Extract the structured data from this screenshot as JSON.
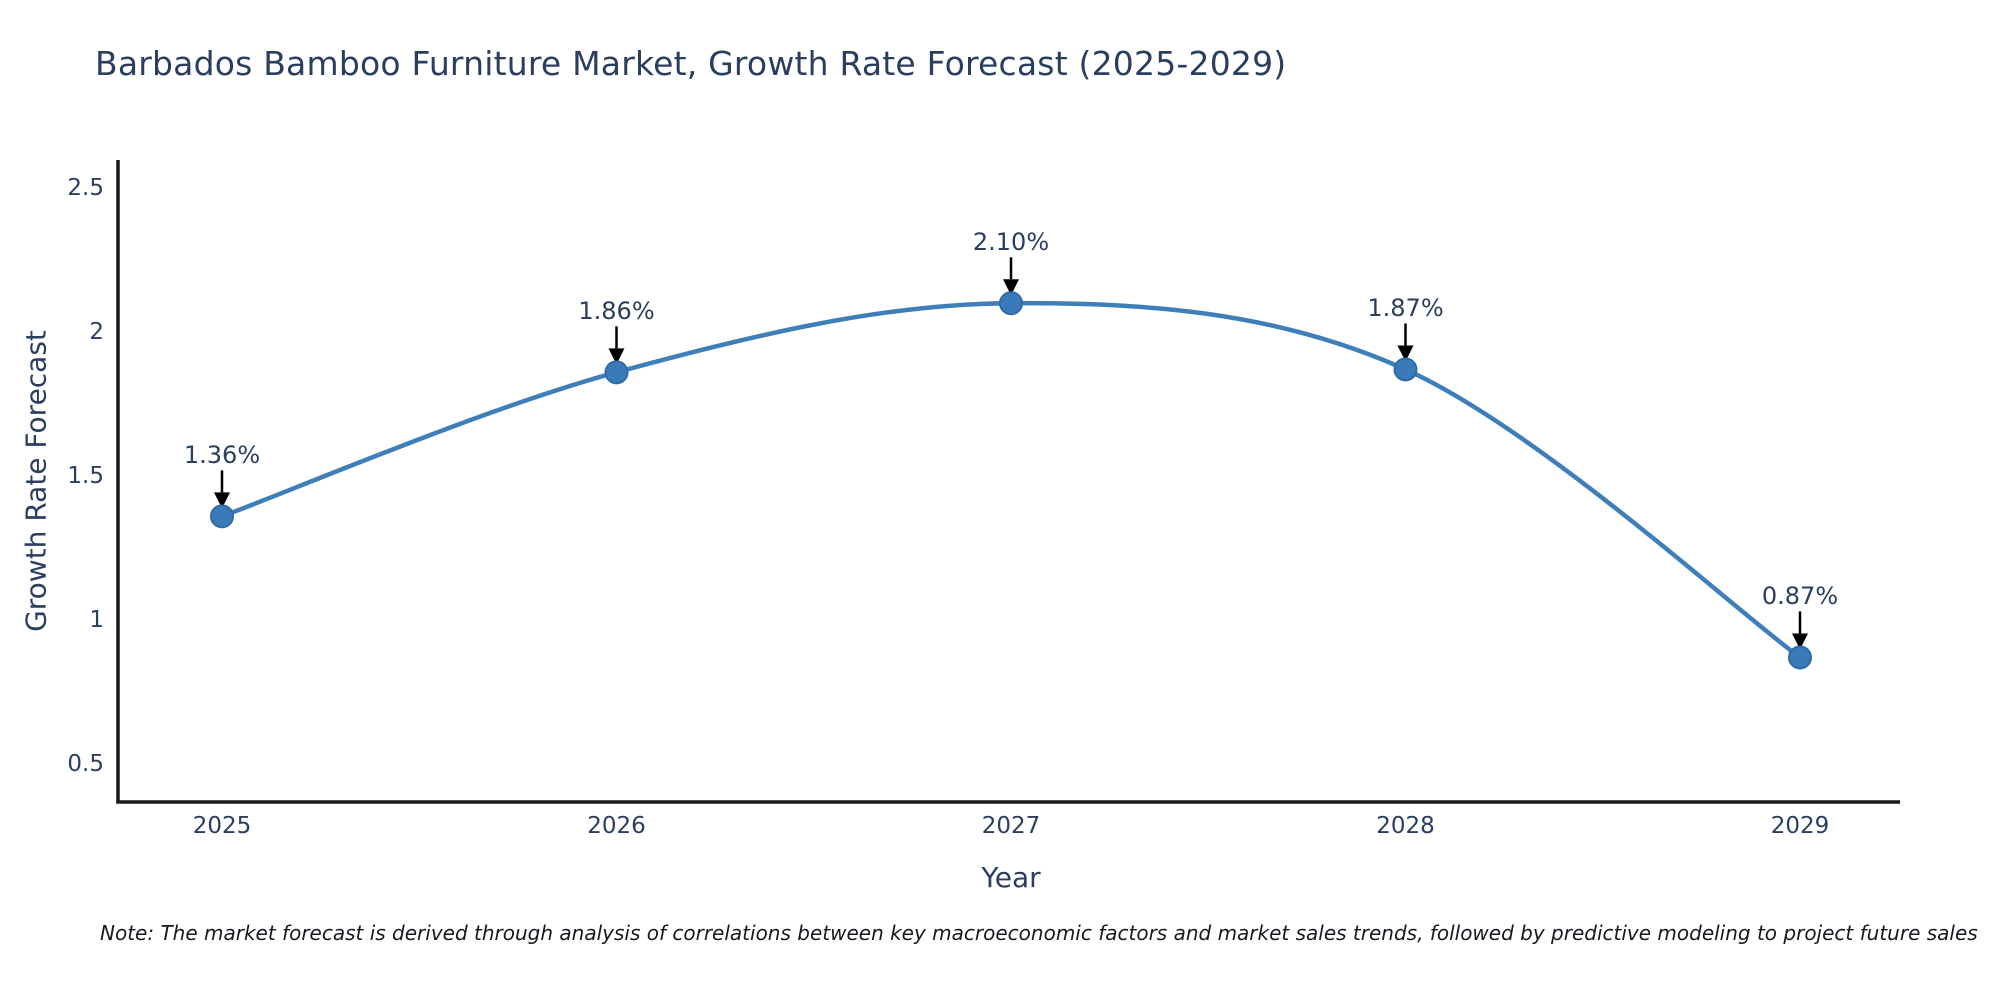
{
  "title": "Barbados Bamboo Furniture Market, Growth Rate Forecast (2025-2029)",
  "note": "Note: The market forecast is derived through analysis of correlations between key macroeconomic factors and market sales trends, followed by predictive modeling to project future sales",
  "colors": {
    "title_text": "#2a3f5f",
    "tick_text": "#2a3f5f",
    "axis_title_text": "#2a3f5f",
    "data_label_text": "#2a3f5f",
    "note_text": "#16191f",
    "axis_line": "#1a1a1a",
    "line": "#3f7fb9",
    "marker_fill": "#3b7ab8",
    "marker_edge": "#2e6ba6",
    "arrow": "#000000",
    "background": "#ffffff"
  },
  "chart_data": {
    "type": "line",
    "line_shape": "spline",
    "markers": true,
    "grid": false,
    "legend": "none",
    "title": "Barbados Bamboo Furniture Market, Growth Rate Forecast (2025-2029)",
    "xlabel": "Year",
    "ylabel": "Growth Rate Forecast",
    "x": [
      2025,
      2026,
      2027,
      2028,
      2029
    ],
    "values": [
      1.36,
      1.86,
      2.1,
      1.87,
      0.87
    ],
    "point_labels": [
      "1.36%",
      "1.86%",
      "2.10%",
      "1.87%",
      "0.87%"
    ],
    "xticks": [
      "2025",
      "2026",
      "2027",
      "2028",
      "2029"
    ],
    "yticks": [
      "0.5",
      "1",
      "1.5",
      "2",
      "2.5"
    ],
    "ytick_values": [
      0.5,
      1.0,
      1.5,
      2.0,
      2.5
    ],
    "ylim": [
      0.37,
      2.6
    ],
    "annotation_style": "value label above point with downward black arrow"
  }
}
